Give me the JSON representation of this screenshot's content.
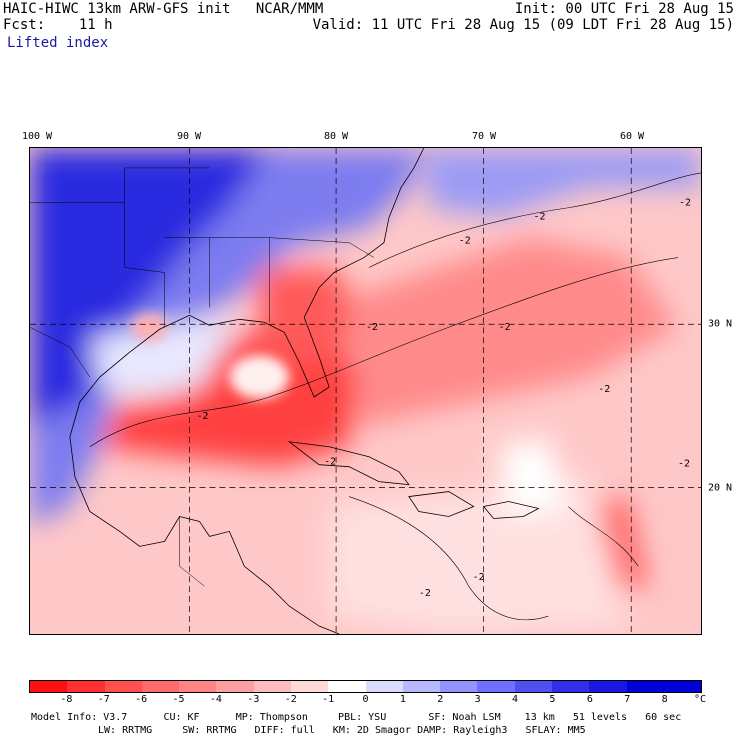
{
  "header": {
    "model_line": "HAIC-HIWC 13km ARW-GFS init   NCAR/MMM",
    "fcst_line": "Fcst:    11 h",
    "init_line": "Init: 00 UTC Fri 28 Aug 15",
    "valid_line": "Valid: 11 UTC Fri 28 Aug 15 (09 LDT Fri 28 Aug 15)",
    "field_label": "Lifted index"
  },
  "map": {
    "lon_labels": [
      "100 W",
      "90 W",
      "80 W",
      "70 W",
      "60 W"
    ],
    "lat_labels": [
      "30 N",
      "20 N"
    ],
    "contour_labels": [
      "-2",
      "-2",
      "-2",
      "-2",
      "-2",
      "-2",
      "-2",
      "-2",
      "-2",
      "-2",
      "-2"
    ]
  },
  "colorbar": {
    "labels": [
      "-8",
      "-7",
      "-6",
      "-5",
      "-4",
      "-3",
      "-2",
      "-1",
      "0",
      "1",
      "2",
      "3",
      "4",
      "5",
      "6",
      "7",
      "8"
    ],
    "unit": "°C",
    "colors": [
      "#ff1010",
      "#ff3030",
      "#ff5050",
      "#ff6a6a",
      "#ff8484",
      "#ffa0a0",
      "#ffbcbc",
      "#ffd8d8",
      "#ffffff",
      "#dcdcff",
      "#b8b8ff",
      "#9494ff",
      "#7070ff",
      "#5050f0",
      "#3030e8",
      "#1818e0",
      "#0000d8"
    ]
  },
  "model_info": {
    "line1": "Model Info: V3.7      CU: KF      MP: Thompson     PBL: YSU       SF: Noah LSM    13 km   51 levels   60 sec",
    "line2": "LW: RRTMG     SW: RRTMG   DIFF: full   KM: 2D Smagor DAMP: Rayleigh3   SFLAY: MM5"
  },
  "colors": {
    "warm": "#ff4040",
    "cool": "#2020e0",
    "neutral": "#ffffff"
  }
}
